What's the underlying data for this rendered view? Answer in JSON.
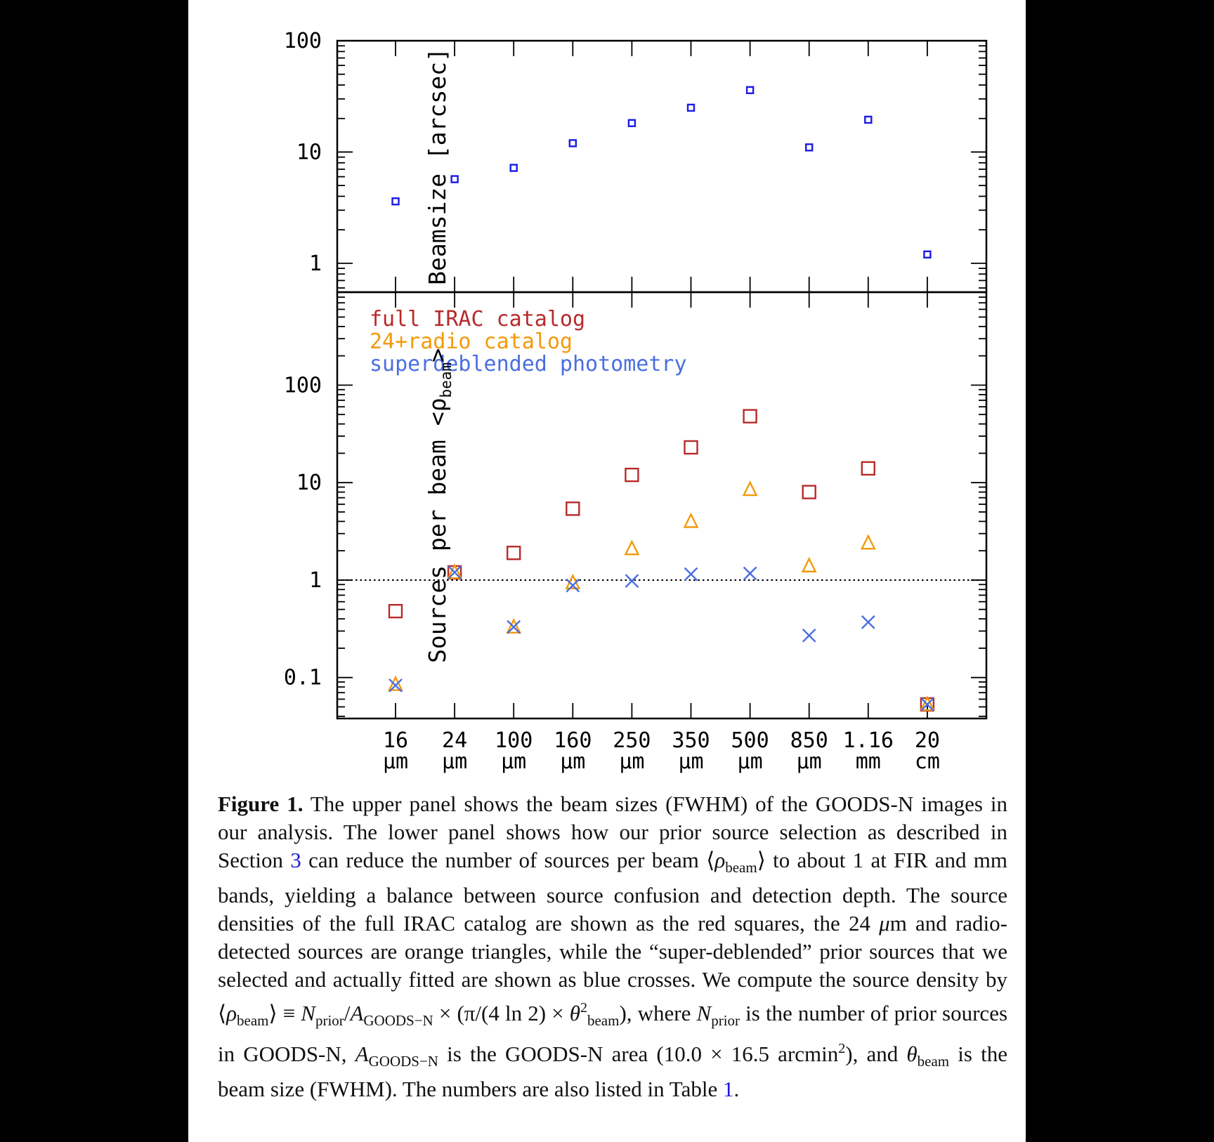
{
  "chart_data": [
    {
      "type": "scatter",
      "panel": "upper",
      "yscale": "log",
      "ylim": [
        0.55,
        100
      ],
      "ylabel": "Beamsize [arcsec]",
      "yticks": [
        "100",
        "10",
        "1"
      ],
      "categories": [
        "16 μm",
        "24 μm",
        "100 μm",
        "160 μm",
        "250 μm",
        "350 μm",
        "500 μm",
        "850 μm",
        "1.16 mm",
        "20 cm"
      ],
      "series": [
        {
          "values": [
            3.6,
            5.7,
            7.2,
            12.0,
            18.2,
            25.0,
            36.0,
            11.0,
            19.5,
            1.2
          ],
          "color": "#1a1ae6",
          "marker": "square"
        }
      ]
    },
    {
      "type": "scatter",
      "panel": "lower",
      "yscale": "log",
      "ylim": [
        0.038,
        900
      ],
      "ylabel": "Sources per beam <ρ",
      "ylabel_sub": "beam",
      "ylabel_end": ">",
      "yticks": [
        "100",
        "10",
        "1",
        "0.1"
      ],
      "categories": [
        "16 μm",
        "24 μm",
        "100 μm",
        "160 μm",
        "250 μm",
        "350 μm",
        "500 μm",
        "850 μm",
        "1.16 mm",
        "20 cm"
      ],
      "reference_line": 1,
      "legend_position": "top-left",
      "series": [
        {
          "name": "full IRAC catalog",
          "values": [
            0.48,
            1.2,
            1.9,
            5.4,
            12.0,
            23.0,
            48.0,
            8.0,
            14.0,
            0.053
          ],
          "color": "#b82a2a",
          "marker": "square"
        },
        {
          "name": "24+radio catalog",
          "values": [
            0.085,
            1.2,
            0.33,
            0.94,
            2.1,
            4.0,
            8.5,
            1.4,
            2.4,
            0.053
          ],
          "color": "#f29a0c",
          "marker": "triangle"
        },
        {
          "name": "superdeblended photometry",
          "values": [
            0.083,
            1.2,
            0.33,
            0.88,
            0.98,
            1.15,
            1.17,
            0.27,
            0.37,
            0.053
          ],
          "color": "#4a6fe0",
          "marker": "cross"
        }
      ]
    }
  ],
  "xaxis": {
    "values": [
      "16",
      "24",
      "100",
      "160",
      "250",
      "350",
      "500",
      "850",
      "1.16",
      "20"
    ],
    "units": [
      "μm",
      "μm",
      "μm",
      "μm",
      "μm",
      "μm",
      "μm",
      "μm",
      "mm",
      "cm"
    ]
  },
  "caption": {
    "label": "Figure 1.",
    "t1": " The upper panel shows the beam sizes (FWHM) of the GOODS-N images in our analysis. The lower panel shows how our prior source selection as described in Section ",
    "ref_section": "3",
    "t2": " can reduce the number of sources per beam ⟨",
    "rho": "ρ",
    "beam_sub": "beam",
    "t3": "⟩ to about 1 at FIR and mm bands, yielding a balance between source confusion and detection depth. The source densities of the full IRAC catalog are shown as the red squares, the 24 ",
    "mu": "μ",
    "t4": "m and radio-detected sources are orange triangles, while the “super-deblended” prior sources that we selected and actually fitted are shown as blue crosses. We compute the source density by ⟨",
    "t5": "⟩ ≡ ",
    "N": "N",
    "prior_sub": "prior",
    "t6": "/",
    "A": "A",
    "goods_sub": "GOODS−N",
    "t7": " × (π/(4 ln 2) × ",
    "theta": "θ",
    "sq": "2",
    "t8": "), where ",
    "t9": " is the number of prior sources in GOODS-N, ",
    "t10": " is the GOODS-N area (10.0 × 16.5 arcmin",
    "t11": "), and ",
    "t12": " is the beam size (FWHM). The numbers are also listed in Table ",
    "ref_table": "1",
    "t13": "."
  }
}
